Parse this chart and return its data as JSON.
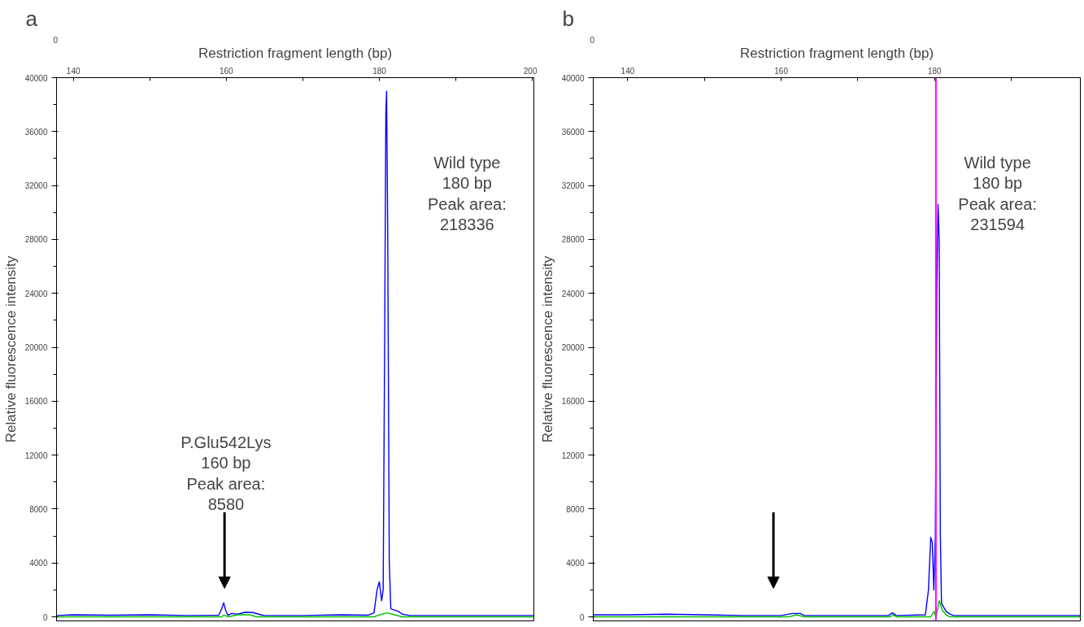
{
  "chart_data": [
    {
      "type": "line",
      "xlabel": "Restriction fragment length (bp)",
      "ylabel": "Relative fluorescence intensity",
      "xlim": [
        137.8,
        200.2
      ],
      "xticks": [
        140,
        {
          "value": 150,
          "label": null
        },
        160,
        {
          "value": 170,
          "label": null
        },
        180,
        {
          "value": 190,
          "label": null
        },
        200
      ],
      "ylim": [
        -300,
        40000
      ],
      "yticks": [
        0,
        4000,
        8000,
        12000,
        16000,
        20000,
        24000,
        28000,
        32000,
        36000,
        40000
      ],
      "grid": false,
      "marker": "none",
      "line_style": "solid",
      "series": [
        {
          "color": "#0000ff",
          "x": [
            137.8,
            140,
            145,
            150,
            155,
            159.0,
            159.4,
            159.65,
            159.9,
            160.2,
            160.7,
            161.5,
            162.5,
            163.5,
            164.5,
            165,
            170,
            175,
            178.5,
            179.3,
            179.7,
            180.0,
            180.3,
            180.5,
            180.7,
            180.85,
            180.95,
            181.1,
            181.3,
            181.5,
            182.5,
            183,
            184,
            190,
            195,
            200.2
          ],
          "values": [
            100,
            150,
            120,
            150,
            100,
            120,
            600,
            1050,
            500,
            120,
            250,
            200,
            350,
            320,
            150,
            100,
            100,
            150,
            120,
            300,
            2000,
            2600,
            1200,
            2000,
            21000,
            37500,
            39000,
            28000,
            4000,
            600,
            400,
            200,
            100,
            100,
            100,
            100
          ]
        },
        {
          "color": "#00c000",
          "x": [
            137.8,
            159.4,
            159.7,
            160.2,
            161.5,
            163,
            164,
            179.3,
            180,
            181,
            182,
            183,
            200.2
          ],
          "values": [
            0,
            0,
            150,
            0,
            150,
            150,
            0,
            0,
            150,
            300,
            150,
            0,
            0
          ]
        }
      ],
      "annotations": [
        "a",
        "0",
        "P.Glu542Lys\n160 bp\nPeak area:\n8580",
        "Wild type\n180 bp\nPeak area:\n218336"
      ]
    },
    {
      "type": "line",
      "xlabel": "Restriction fragment length (bp)",
      "ylabel": "Relative fluorescence intensity",
      "xlim": [
        135.5,
        199
      ],
      "xticks": [
        140,
        {
          "value": 150,
          "label": null
        },
        160,
        {
          "value": 170,
          "label": null
        },
        180,
        {
          "value": 190,
          "label": null
        }
      ],
      "ylim": [
        -300,
        40000
      ],
      "yticks": [
        0,
        4000,
        8000,
        12000,
        16000,
        20000,
        24000,
        28000,
        32000,
        36000,
        40000
      ],
      "grid": false,
      "marker": "none",
      "line_style": "solid",
      "series": [
        {
          "color": "#0000ff",
          "x": [
            135.5,
            140,
            145,
            150,
            155,
            160,
            161.5,
            162.5,
            163,
            170,
            174,
            174.5,
            175,
            178.8,
            179.2,
            179.5,
            179.7,
            179.9,
            180.1,
            180.3,
            180.45,
            180.6,
            180.75,
            180.9,
            181.5,
            182,
            182.5,
            190,
            199
          ],
          "values": [
            150,
            150,
            200,
            150,
            100,
            100,
            250,
            250,
            100,
            100,
            100,
            300,
            100,
            150,
            2000,
            5900,
            5500,
            2000,
            6000,
            24800,
            30600,
            28000,
            6000,
            1000,
            400,
            200,
            100,
            100,
            100
          ]
        },
        {
          "color": "#00c000",
          "x": [
            135.5,
            161,
            162,
            163,
            174.2,
            174.6,
            175,
            179.5,
            179.9,
            180.2,
            180.6,
            181,
            181.5,
            182,
            199
          ],
          "values": [
            0,
            0,
            150,
            0,
            0,
            150,
            0,
            0,
            400,
            0,
            1200,
            500,
            150,
            0,
            0
          ]
        }
      ],
      "ref_lines": [
        {
          "axis": "x",
          "value": 180.17,
          "label": null,
          "color": "#ff00ff"
        }
      ],
      "annotations": [
        "b",
        "0",
        "Wild type\n180 bp\nPeak area:\n231594"
      ]
    }
  ]
}
